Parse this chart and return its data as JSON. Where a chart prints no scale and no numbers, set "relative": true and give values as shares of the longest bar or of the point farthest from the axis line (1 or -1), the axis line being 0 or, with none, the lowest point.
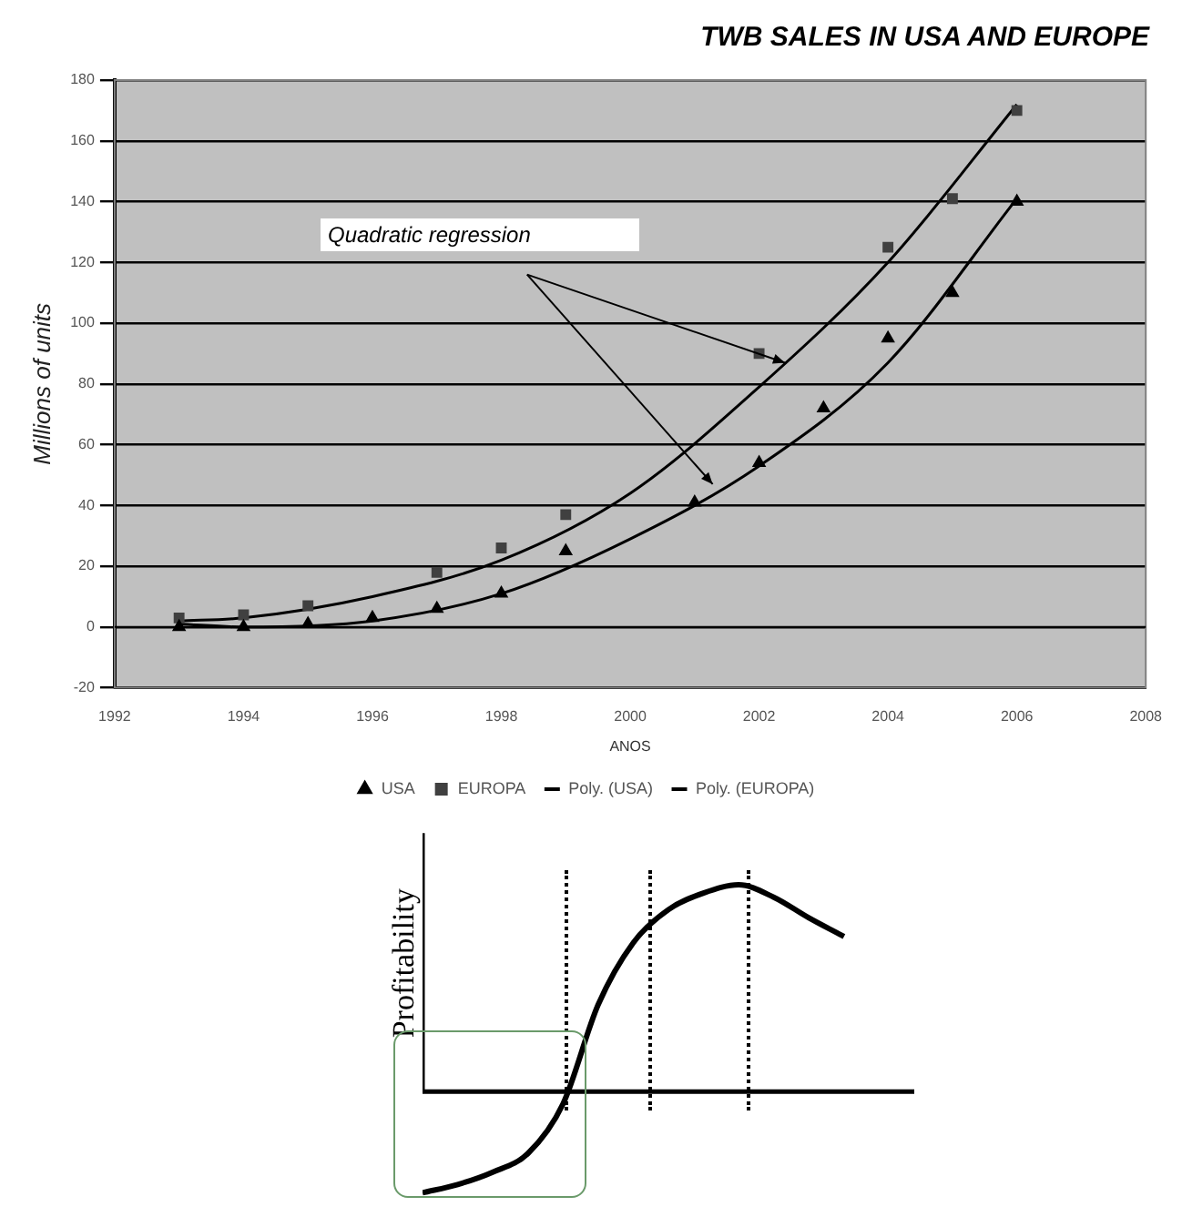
{
  "chart_data": [
    {
      "type": "scatter",
      "title": "TWB SALES IN USA AND EUROPE",
      "xlabel": "ANOS",
      "ylabel": "Millions of units",
      "annotations": [
        {
          "text": "Quadratic regression",
          "x": 2002.4,
          "y": 87
        }
      ],
      "xlim": [
        1992,
        2008
      ],
      "xticks": [
        1992,
        1994,
        1996,
        1998,
        2000,
        2002,
        2004,
        2006,
        2008
      ],
      "ylim": [
        -20,
        180
      ],
      "yticks": [
        -20,
        0,
        20,
        40,
        60,
        80,
        100,
        120,
        140,
        160,
        180
      ],
      "grid": "y",
      "legend": "bottom",
      "series": [
        {
          "name": "USA",
          "type": "scatter",
          "marker": "triangle",
          "color": "#000000",
          "x": [
            1993,
            1994,
            1995,
            1996,
            1997,
            1998,
            1999,
            2001,
            2002,
            2003,
            2004,
            2005,
            2006
          ],
          "values": [
            0,
            0,
            1,
            3,
            6,
            11,
            25,
            41,
            54,
            72,
            95,
            110,
            140
          ]
        },
        {
          "name": "EUROPA",
          "type": "scatter",
          "marker": "square",
          "color": "#404040",
          "x": [
            1993,
            1994,
            1995,
            1997,
            1998,
            1999,
            2002,
            2004,
            2005,
            2006
          ],
          "values": [
            3,
            4,
            7,
            18,
            26,
            37,
            90,
            125,
            141,
            170
          ]
        },
        {
          "name": "Poly. (USA)",
          "type": "line",
          "marker": "none",
          "color": "#000000",
          "x": [
            1993,
            1994,
            1996,
            1998,
            2000,
            2002,
            2004,
            2006
          ],
          "values": [
            1,
            0,
            2,
            11,
            29,
            53,
            87,
            141
          ]
        },
        {
          "name": "Poly. (EUROPA)",
          "type": "line",
          "marker": "none",
          "color": "#000000",
          "x": [
            1993,
            1994,
            1996,
            1998,
            2000,
            2002,
            2004,
            2006
          ],
          "values": [
            2,
            3,
            10,
            22,
            44,
            79,
            120,
            172
          ]
        }
      ]
    },
    {
      "type": "line",
      "relative": true,
      "ylabel": "Profitability",
      "color": "#000000",
      "categories": [
        null,
        null,
        null,
        null,
        null,
        null,
        null,
        null,
        null,
        null,
        null,
        null,
        null,
        null,
        null
      ],
      "values": [
        -0.49,
        -0.45,
        -0.39,
        -0.3,
        -0.06,
        0.42,
        0.72,
        0.88,
        0.96,
        1.0,
        0.94,
        0.84,
        0.75,
        null,
        null
      ]
    }
  ]
}
